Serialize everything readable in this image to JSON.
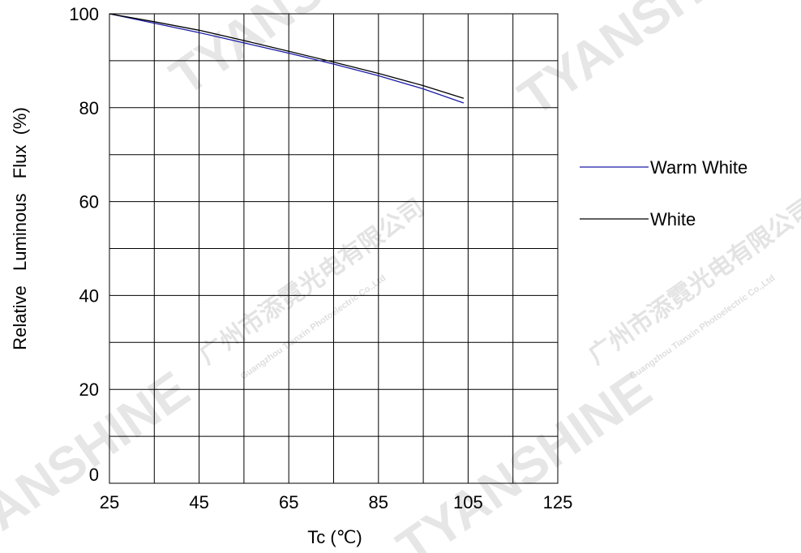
{
  "chart_data": {
    "type": "line",
    "title": "",
    "xlabel": "Tc (℃)",
    "ylabel": "Relative   Luminous   Flux  (%)",
    "xlim": [
      25,
      125
    ],
    "ylim": [
      0,
      100
    ],
    "x_ticks": [
      "25",
      "45",
      "65",
      "85",
      "105",
      "125"
    ],
    "y_ticks": [
      "0",
      "20",
      "40",
      "60",
      "80",
      "100"
    ],
    "grid": true,
    "legend_position": "right",
    "series": [
      {
        "name": "Warm White",
        "color": "#1a1aa6",
        "x": [
          25,
          35,
          45,
          55,
          65,
          75,
          85,
          95,
          104
        ],
        "y": [
          100,
          98,
          96,
          93.8,
          91.6,
          89.3,
          86.8,
          84,
          81
        ]
      },
      {
        "name": "White",
        "color": "#000000",
        "x": [
          25,
          35,
          45,
          55,
          65,
          75,
          85,
          95,
          104
        ],
        "y": [
          100,
          98.3,
          96.5,
          94.3,
          92,
          89.7,
          87.3,
          84.7,
          82
        ]
      }
    ]
  },
  "watermarks": [
    "TYANSHINE",
    "广州市添霓光电有限公司",
    "Guangzhou Tianxin Photoelectric Co.,Ltd"
  ]
}
